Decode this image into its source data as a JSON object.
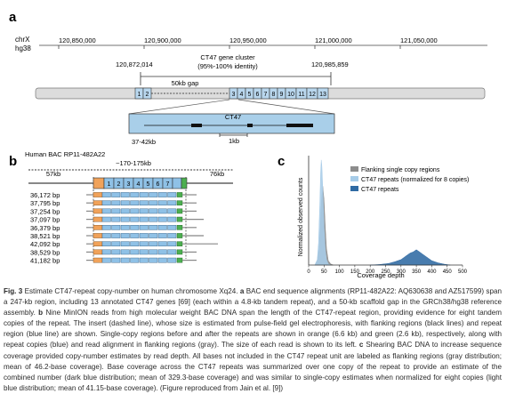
{
  "panel_a": {
    "label": "a",
    "chrom": "chrX",
    "assembly": "hg38",
    "ticks": [
      "120,850,000",
      "120,900,000",
      "120,950,000",
      "121,000,000",
      "121,050,000"
    ],
    "region_start": "120,872,014",
    "region_end": "120,985,859",
    "cluster_title": "CT47 gene cluster",
    "cluster_identity": "(95%-100% identity)",
    "gap_label": "50kb gap",
    "repeats_left": [
      "1",
      "2"
    ],
    "repeats_right": [
      "3",
      "4",
      "5",
      "6",
      "7",
      "8",
      "9",
      "10",
      "11",
      "12",
      "13"
    ],
    "inset_title": "CT47",
    "scale": "1kb",
    "inset_size": "37-42kb"
  },
  "panel_b": {
    "label": "b",
    "title": "Human BAC RP11-482A22",
    "insert_size": "~170-175kb",
    "left_flank": "57kb",
    "right_flank": "76kb",
    "header_repeats": [
      "1",
      "2",
      "3",
      "4",
      "5",
      "6",
      "7"
    ],
    "reads": [
      {
        "size": "36,172 bp",
        "left": 1,
        "repeats": 8,
        "right": 2
      },
      {
        "size": "37,795 bp",
        "left": 1,
        "repeats": 8,
        "right": 2
      },
      {
        "size": "37,254 bp",
        "left": 1,
        "repeats": 8,
        "right": 2
      },
      {
        "size": "37,097 bp",
        "left": 1,
        "repeats": 8,
        "right": 3
      },
      {
        "size": "36,379 bp",
        "left": 1,
        "repeats": 8,
        "right": 2
      },
      {
        "size": "38,521 bp",
        "left": 1,
        "repeats": 8,
        "right": 3
      },
      {
        "size": "42,092 bp",
        "left": 1,
        "repeats": 8,
        "right": 5
      },
      {
        "size": "38,529 bp",
        "left": 1,
        "repeats": 8,
        "right": 2
      },
      {
        "size": "41,182 bp",
        "left": 1,
        "repeats": 8,
        "right": 2
      }
    ]
  },
  "panel_c": {
    "label": "c",
    "ylabel": "Normalized observed counts",
    "xlabel": "Coverage depth",
    "legend": [
      "Flanking single copy regions",
      "CT47 repeats (normalized for 8 copies)",
      "CT47 repeats"
    ]
  },
  "chart_data": {
    "type": "area",
    "xlabel": "Coverage depth",
    "ylabel": "Normalized observed counts",
    "xlim": [
      0,
      500
    ],
    "x_ticks": [
      0,
      50,
      100,
      150,
      200,
      250,
      300,
      350,
      400,
      450,
      500
    ],
    "legend_position": "top-right",
    "series": [
      {
        "name": "Flanking single copy regions",
        "color": "#8c8c8c",
        "x": [
          20,
          28,
          34,
          38,
          42,
          46,
          50,
          54,
          58,
          64,
          72,
          80
        ],
        "y": [
          0,
          0.04,
          0.15,
          0.35,
          0.6,
          0.72,
          0.6,
          0.35,
          0.15,
          0.04,
          0.01,
          0
        ]
      },
      {
        "name": "CT47 repeats (normalized for 8 copies)",
        "color": "#a7cce8",
        "x": [
          20,
          28,
          32,
          36,
          39,
          41,
          43,
          46,
          50,
          54,
          58,
          64,
          72
        ],
        "y": [
          0,
          0.05,
          0.2,
          0.55,
          0.85,
          0.96,
          0.9,
          0.7,
          0.35,
          0.14,
          0.05,
          0.01,
          0
        ]
      },
      {
        "name": "CT47 repeats",
        "color": "#2f6aa3",
        "x": [
          200,
          230,
          260,
          280,
          300,
          310,
          320,
          330,
          340,
          350,
          360,
          370,
          380,
          390,
          400,
          420,
          440,
          460
        ],
        "y": [
          0,
          0.005,
          0.015,
          0.03,
          0.05,
          0.07,
          0.09,
          0.11,
          0.12,
          0.14,
          0.12,
          0.1,
          0.08,
          0.06,
          0.04,
          0.02,
          0.008,
          0
        ]
      }
    ]
  },
  "caption": {
    "fig_label": "Fig. 3",
    "text1": " Estimate CT47-repeat copy-number on human chromosome Xq24. ",
    "a": "a",
    "text2": " BAC end sequence alignments (RP11-482A22: AQ630638 and AZ517599) span a 247-kb region, including 13 annotated CT47 genes [69] (each within a 4.8-kb tandem repeat), and a 50-kb scaffold gap in the GRCh38/hg38 reference assembly. ",
    "b": "b",
    "text3": " Nine MinION reads from high molecular weight BAC DNA span the length of the CT47-repeat region, providing evidence for eight tandem copies of the repeat. The insert (dashed line), whose size is estimated from pulse-field gel electrophoresis, with flanking regions (black lines) and repeat region (blue line) are shown. Single-copy regions before and after the repeats are shown in orange (6.6 kb) and green (2.6 kb), respectively, along with repeat copies (blue) and read alignment in flanking regions (gray). The size of each read is shown to its left. ",
    "c": "c",
    "text4": " Shearing BAC DNA to increase sequence coverage provided copy-number estimates by read depth. All bases not included in the CT47 repeat unit are labeled as flanking regions (gray distribution; mean of 46.2-base coverage). Base coverage across the CT47 repeats was summarized over one copy of the repeat to provide an estimate of the combined number (dark blue distribution; mean of 329.3-base coverage) and was similar to single-copy estimates when normalized for eight copies (light blue distribution; mean of 41.15-base coverage). (Figure reproduced from Jain et al. [9])"
  }
}
